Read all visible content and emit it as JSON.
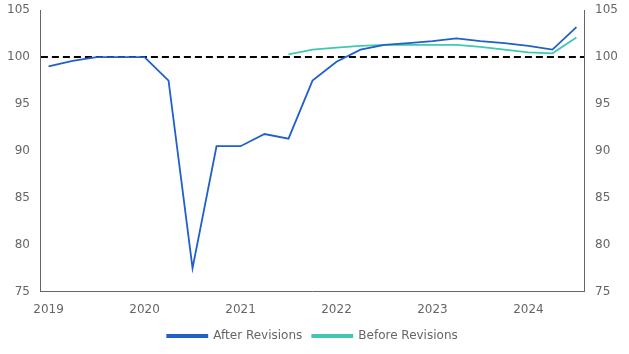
{
  "chart_data": {
    "type": "line",
    "series": [
      {
        "name": "After Revisions",
        "color": "#2060c8",
        "x": [
          2019.0,
          2019.25,
          2019.5,
          2019.75,
          2020.0,
          2020.25,
          2020.5,
          2020.75,
          2021.0,
          2021.25,
          2021.5,
          2021.75,
          2022.0,
          2022.25,
          2022.5,
          2022.75,
          2023.0,
          2023.25,
          2023.5,
          2023.75,
          2024.0,
          2024.25,
          2024.5
        ],
        "values": [
          99.0,
          99.6,
          100.0,
          100.0,
          100.0,
          97.5,
          77.5,
          90.5,
          90.5,
          91.8,
          91.3,
          97.5,
          99.5,
          100.8,
          101.3,
          101.5,
          101.7,
          102.0,
          101.7,
          101.5,
          101.2,
          100.8,
          103.2
        ]
      },
      {
        "name": "Before Revisions",
        "color": "#40c8b0",
        "x": [
          2021.5,
          2021.75,
          2022.0,
          2022.25,
          2022.5,
          2022.75,
          2023.0,
          2023.25,
          2023.5,
          2023.75,
          2024.0,
          2024.25,
          2024.5
        ],
        "values": [
          100.3,
          100.8,
          101.0,
          101.2,
          101.3,
          101.3,
          101.3,
          101.3,
          101.1,
          100.8,
          100.5,
          100.4,
          102.1
        ]
      }
    ],
    "reference_lines": [
      {
        "y": 100,
        "color": "#000000",
        "line_style": "dashed"
      }
    ],
    "xlim": [
      2018.92,
      2024.58
    ],
    "xticks": [
      2019,
      2020,
      2021,
      2022,
      2023,
      2024
    ],
    "ylim": [
      75,
      105
    ],
    "yticks": [
      75,
      80,
      85,
      90,
      95,
      100,
      105
    ],
    "y2lim": [
      75,
      105
    ],
    "y2ticks": [
      75,
      80,
      85,
      90,
      95,
      100,
      105
    ],
    "grid": false,
    "legend": "bottom"
  }
}
